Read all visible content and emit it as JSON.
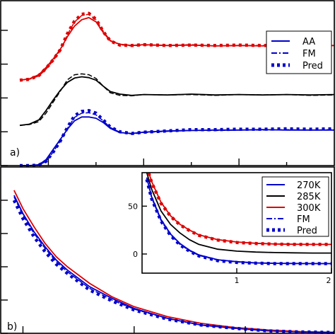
{
  "chart_data": [
    {
      "type": "line",
      "panel_label": "a)",
      "x_range": [
        0,
        14
      ],
      "y_range": [
        0,
        3.9
      ],
      "x_major_ticks": [
        2,
        6,
        10
      ],
      "x_minor_ticks": [
        4,
        8,
        12
      ],
      "y_major_ticks": [
        0,
        0.8,
        1.6,
        2.4,
        3.2
      ],
      "legend": {
        "placement": "top-right",
        "entries": [
          "AA",
          "FM",
          "Pred"
        ]
      },
      "groups": [
        {
          "color": "#dd0000",
          "series": [
            {
              "style": "AA",
              "x": [
                0.8,
                1.2,
                1.6,
                1.9,
                2.2,
                2.5,
                2.8,
                3.1,
                3.4,
                3.7,
                4.0,
                4.3,
                4.6,
                5.0,
                5.5,
                6.0,
                7,
                8,
                9,
                10,
                11,
                12,
                13,
                14
              ],
              "y": [
                2.02,
                2.05,
                2.15,
                2.32,
                2.52,
                2.75,
                3.05,
                3.3,
                3.45,
                3.5,
                3.4,
                3.15,
                2.95,
                2.87,
                2.84,
                2.86,
                2.84,
                2.85,
                2.83,
                2.84,
                2.83,
                2.84,
                2.83,
                2.84
              ]
            },
            {
              "style": "FM",
              "x": [
                0.8,
                1.2,
                1.6,
                1.9,
                2.2,
                2.5,
                2.8,
                3.1,
                3.4,
                3.7,
                4.0,
                4.3,
                4.6,
                5.0,
                5.5,
                6.0,
                7,
                8,
                9,
                10,
                11,
                12,
                13,
                14
              ],
              "y": [
                2.02,
                2.04,
                2.12,
                2.28,
                2.48,
                2.72,
                3.1,
                3.4,
                3.55,
                3.58,
                3.45,
                3.18,
                2.96,
                2.86,
                2.83,
                2.85,
                2.84,
                2.86,
                2.83,
                2.84,
                2.84,
                2.85,
                2.83,
                2.84
              ]
            },
            {
              "style": "Pred",
              "x": [
                0.8,
                1.2,
                1.6,
                1.9,
                2.2,
                2.5,
                2.8,
                3.1,
                3.4,
                3.7,
                4.0,
                4.3,
                4.6,
                5.0,
                5.5,
                6.0,
                7,
                8,
                9,
                10,
                11,
                12,
                13,
                14
              ],
              "y": [
                2.02,
                2.04,
                2.13,
                2.3,
                2.5,
                2.74,
                3.12,
                3.42,
                3.58,
                3.6,
                3.46,
                3.17,
                2.95,
                2.85,
                2.84,
                2.86,
                2.84,
                2.85,
                2.84,
                2.85,
                2.84,
                2.85,
                2.84,
                2.85
              ]
            }
          ]
        },
        {
          "color": "#000000",
          "series": [
            {
              "style": "AA",
              "x": [
                0.8,
                1.2,
                1.6,
                1.9,
                2.2,
                2.5,
                2.8,
                3.1,
                3.4,
                3.7,
                4.0,
                4.3,
                4.6,
                5.0,
                5.5,
                6.0,
                7,
                8,
                9,
                10,
                11,
                12,
                13,
                14
              ],
              "y": [
                0.95,
                0.98,
                1.08,
                1.3,
                1.55,
                1.78,
                1.97,
                2.07,
                2.1,
                2.08,
                2.02,
                1.88,
                1.75,
                1.69,
                1.66,
                1.68,
                1.67,
                1.69,
                1.67,
                1.68,
                1.67,
                1.68,
                1.67,
                1.68
              ]
            },
            {
              "style": "FM",
              "x": [
                0.8,
                1.2,
                1.6,
                1.9,
                2.2,
                2.5,
                2.8,
                3.1,
                3.4,
                3.7,
                4.0,
                4.3,
                4.6,
                5.0,
                5.5,
                6.0,
                7,
                8,
                9,
                10,
                11,
                12,
                13,
                14
              ],
              "y": [
                0.95,
                0.97,
                1.04,
                1.24,
                1.5,
                1.76,
                2.03,
                2.15,
                2.17,
                2.15,
                2.06,
                1.88,
                1.72,
                1.66,
                1.65,
                1.68,
                1.67,
                1.68,
                1.66,
                1.68,
                1.67,
                1.68,
                1.66,
                1.67
              ]
            }
          ]
        },
        {
          "color": "#0000cc",
          "series": [
            {
              "style": "AA",
              "x": [
                0.8,
                1.2,
                1.6,
                1.9,
                2.2,
                2.5,
                2.8,
                3.1,
                3.4,
                3.7,
                4.0,
                4.3,
                4.6,
                5.0,
                5.5,
                6.0,
                7,
                8,
                9,
                10,
                11,
                12,
                13,
                14
              ],
              "y": [
                0.0,
                0.0,
                0.02,
                0.14,
                0.38,
                0.62,
                0.86,
                1.06,
                1.15,
                1.15,
                1.12,
                1.02,
                0.88,
                0.78,
                0.76,
                0.79,
                0.82,
                0.83,
                0.84,
                0.84,
                0.85,
                0.84,
                0.84,
                0.84
              ]
            },
            {
              "style": "FM",
              "x": [
                0.8,
                1.2,
                1.6,
                1.9,
                2.2,
                2.5,
                2.8,
                3.1,
                3.4,
                3.7,
                4.0,
                4.3,
                4.6,
                5.0,
                5.5,
                6.0,
                7,
                8,
                9,
                10,
                11,
                12,
                13,
                14
              ],
              "y": [
                0.0,
                0.0,
                0.01,
                0.1,
                0.32,
                0.58,
                0.88,
                1.14,
                1.24,
                1.25,
                1.2,
                1.06,
                0.9,
                0.79,
                0.75,
                0.78,
                0.81,
                0.83,
                0.83,
                0.84,
                0.84,
                0.85,
                0.84,
                0.85
              ]
            },
            {
              "style": "Pred",
              "x": [
                0.8,
                1.2,
                1.6,
                1.9,
                2.2,
                2.5,
                2.8,
                3.1,
                3.4,
                3.7,
                4.0,
                4.3,
                4.6,
                5.0,
                5.5,
                6.0,
                7,
                8,
                9,
                10,
                11,
                12,
                13,
                14
              ],
              "y": [
                0.0,
                0.0,
                0.01,
                0.1,
                0.32,
                0.58,
                0.9,
                1.18,
                1.28,
                1.3,
                1.24,
                1.08,
                0.91,
                0.8,
                0.76,
                0.79,
                0.82,
                0.85,
                0.85,
                0.86,
                0.86,
                0.87,
                0.86,
                0.87
              ]
            }
          ]
        }
      ]
    },
    {
      "type": "line",
      "panel_label": "b)",
      "x_range": [
        0,
        3
      ],
      "y_range": [
        0,
        100
      ],
      "x_major_ticks": [
        0.2,
        1.2,
        2.2
      ],
      "y_major_ticks": [
        0,
        20,
        40,
        60,
        80
      ],
      "series": [
        {
          "name": "270K",
          "color": "#0000cc",
          "style": "solid",
          "x": [
            0.12,
            0.2,
            0.3,
            0.4,
            0.5,
            0.6,
            0.8,
            1.0,
            1.2,
            1.5,
            1.8,
            2.1,
            2.4,
            2.7,
            3.0
          ],
          "y": [
            83,
            72,
            61,
            52,
            44,
            38,
            28,
            21,
            15,
            9,
            5,
            3,
            1.5,
            0.8,
            0.5
          ]
        },
        {
          "name": "300K",
          "color": "#dd0000",
          "style": "solid",
          "x": [
            0.12,
            0.2,
            0.3,
            0.4,
            0.5,
            0.6,
            0.8,
            1.0,
            1.2,
            1.5,
            1.8,
            2.1,
            2.4,
            2.7,
            3.0
          ],
          "y": [
            86,
            75,
            64,
            54,
            46,
            40,
            30,
            22,
            16,
            10,
            6,
            3.5,
            2,
            1,
            0.6
          ]
        },
        {
          "name": "FM",
          "color": "#0000cc",
          "style": "dashed",
          "x": [
            0.12,
            0.2,
            0.3,
            0.4,
            0.5,
            0.6,
            0.8,
            1.0,
            1.2,
            1.5,
            1.8,
            2.1,
            2.4,
            2.7,
            3.0
          ],
          "y": [
            82,
            71,
            60,
            51,
            43,
            37,
            27,
            20,
            14.5,
            8.8,
            5,
            3,
            1.5,
            0.8,
            0.5
          ]
        },
        {
          "name": "Pred",
          "color": "#0000cc",
          "style": "dotted",
          "x": [
            0.12,
            0.2,
            0.3,
            0.4,
            0.5,
            0.6,
            0.8,
            1.0,
            1.2,
            1.5,
            1.8,
            2.1,
            2.4,
            2.7,
            3.0
          ],
          "y": [
            80,
            69,
            58,
            49,
            41.5,
            36,
            26,
            19.5,
            14,
            8.5,
            5,
            3,
            1.5,
            0.8,
            0.5
          ]
        }
      ],
      "inset": {
        "x_range": [
          0,
          2
        ],
        "y_range": [
          -20,
          85
        ],
        "x_ticks": [
          1,
          2
        ],
        "x_tick_labels": [
          "1",
          "2"
        ],
        "y_ticks": [
          0,
          50
        ],
        "y_tick_labels": [
          "0",
          "50"
        ],
        "legend": {
          "placement": "top-right",
          "entries": [
            "270K",
            "285K",
            "300K",
            "FM",
            "Pred"
          ]
        },
        "series": [
          {
            "name": "270K",
            "color": "#0000cc",
            "style": "solid",
            "x": [
              0.05,
              0.1,
              0.2,
              0.3,
              0.4,
              0.5,
              0.6,
              0.8,
              1.0,
              1.2,
              1.4,
              1.6,
              1.8,
              2.0
            ],
            "y": [
              80,
              60,
              36,
              21,
              11,
              4,
              -1,
              -6,
              -8,
              -9.3,
              -9.7,
              -9.9,
              -10,
              -10
            ]
          },
          {
            "name": "285K",
            "color": "#000000",
            "style": "solid",
            "x": [
              0.05,
              0.1,
              0.2,
              0.3,
              0.4,
              0.5,
              0.6,
              0.8,
              1.0,
              1.2,
              1.4,
              1.6,
              1.8,
              2.0
            ],
            "y": [
              85,
              68,
              45,
              31,
              22,
              15,
              10,
              5,
              3,
              2,
              1.5,
              1.2,
              1,
              1
            ]
          },
          {
            "name": "300K",
            "color": "#dd0000",
            "style": "solid",
            "x": [
              0.05,
              0.1,
              0.2,
              0.3,
              0.4,
              0.5,
              0.6,
              0.8,
              1.0,
              1.2,
              1.4,
              1.6,
              1.8,
              2.0
            ],
            "y": [
              92,
              76,
              54,
              40,
              31,
              25,
              20,
              15,
              12.5,
              11.2,
              10.5,
              10.2,
              10,
              10
            ]
          },
          {
            "name": "FM",
            "color": "#0000cc",
            "style": "dashed",
            "x": [
              0.05,
              0.1,
              0.2,
              0.3,
              0.4,
              0.5,
              0.6,
              0.8,
              1.0,
              1.2,
              1.4,
              1.6,
              1.8,
              2.0
            ],
            "y": [
              79,
              59,
              35,
              20,
              10,
              3.5,
              -1.5,
              -6.5,
              -8.3,
              -9.4,
              -9.8,
              -10,
              -10,
              -10
            ]
          },
          {
            "name": "Pred",
            "color": "#dd0000",
            "style": "dotted",
            "x": [
              0.05,
              0.1,
              0.2,
              0.3,
              0.4,
              0.5,
              0.6,
              0.8,
              1.0,
              1.2,
              1.4,
              1.6,
              1.8,
              2.0
            ],
            "y": [
              91,
              75,
              53,
              39.5,
              30.5,
              24.5,
              19.5,
              14.5,
              12,
              11,
              10.3,
              10,
              10,
              10
            ]
          },
          {
            "name": "Pred",
            "color": "#0000cc",
            "style": "dotted",
            "x": [
              0.05,
              0.1,
              0.2,
              0.3,
              0.4,
              0.5,
              0.6,
              0.8,
              1.0,
              1.2,
              1.4,
              1.6,
              1.8,
              2.0
            ],
            "y": [
              78,
              58,
              34.5,
              19.5,
              9.5,
              3,
              -2,
              -7,
              -8.8,
              -9.6,
              -10,
              -10,
              -10,
              -10
            ]
          }
        ]
      }
    }
  ]
}
